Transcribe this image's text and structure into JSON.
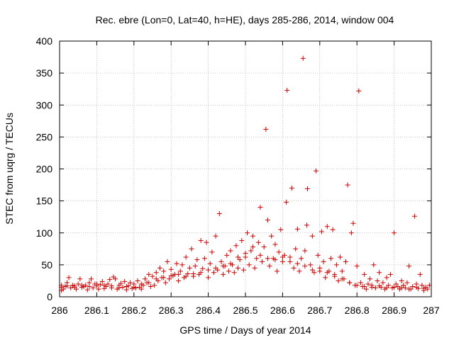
{
  "chart_data": {
    "type": "scatter",
    "title": "Rec. ebre (Lon=0, Lat=40, h=HE), days 285-286, 2014, window 004",
    "xlabel": "GPS time / Days of year 2014",
    "ylabel": "STEC from uqrg / TECUs",
    "xlim": [
      286,
      287
    ],
    "ylim": [
      0,
      400
    ],
    "xticks": [
      286,
      286.1,
      286.2,
      286.3,
      286.4,
      286.5,
      286.6,
      286.7,
      286.8,
      286.9,
      287
    ],
    "xtick_labels": [
      "286",
      "286.1",
      "286.2",
      "286.3",
      "286.4",
      "286.5",
      "286.6",
      "286.7",
      "286.8",
      "286.9",
      "287"
    ],
    "yticks": [
      0,
      50,
      100,
      150,
      200,
      250,
      300,
      350,
      400
    ],
    "ytick_labels": [
      "0",
      "50",
      "100",
      "150",
      "200",
      "250",
      "300",
      "350",
      "400"
    ],
    "grid": true,
    "marker": "+",
    "color": "#cc0000",
    "series": [
      {
        "name": "STEC",
        "points": [
          [
            286.005,
            10
          ],
          [
            286.005,
            15
          ],
          [
            286.005,
            18
          ],
          [
            286.01,
            12
          ],
          [
            286.015,
            16
          ],
          [
            286.02,
            22
          ],
          [
            286.025,
            30
          ],
          [
            286.03,
            14
          ],
          [
            286.035,
            18
          ],
          [
            286.04,
            17
          ],
          [
            286.045,
            12
          ],
          [
            286.05,
            20
          ],
          [
            286.055,
            28
          ],
          [
            286.06,
            15
          ],
          [
            286.065,
            16
          ],
          [
            286.07,
            18
          ],
          [
            286.075,
            11
          ],
          [
            286.08,
            22
          ],
          [
            286.085,
            28
          ],
          [
            286.09,
            14
          ],
          [
            286.095,
            20
          ],
          [
            286.1,
            17
          ],
          [
            286.105,
            12
          ],
          [
            286.11,
            19
          ],
          [
            286.115,
            24
          ],
          [
            286.12,
            13
          ],
          [
            286.125,
            16
          ],
          [
            286.13,
            20
          ],
          [
            286.135,
            27
          ],
          [
            286.14,
            14
          ],
          [
            286.145,
            31
          ],
          [
            286.15,
            28
          ],
          [
            286.155,
            12
          ],
          [
            286.16,
            18
          ],
          [
            286.165,
            21
          ],
          [
            286.17,
            15
          ],
          [
            286.175,
            24
          ],
          [
            286.18,
            11
          ],
          [
            286.185,
            17
          ],
          [
            286.19,
            22
          ],
          [
            286.195,
            13
          ],
          [
            286.2,
            20
          ],
          [
            286.205,
            14
          ],
          [
            286.21,
            25
          ],
          [
            286.215,
            15
          ],
          [
            286.22,
            12
          ],
          [
            286.225,
            18
          ],
          [
            286.23,
            28
          ],
          [
            286.235,
            22
          ],
          [
            286.24,
            35
          ],
          [
            286.245,
            16
          ],
          [
            286.25,
            32
          ],
          [
            286.255,
            18
          ],
          [
            286.26,
            38
          ],
          [
            286.265,
            25
          ],
          [
            286.27,
            45
          ],
          [
            286.275,
            30
          ],
          [
            286.28,
            40
          ],
          [
            286.285,
            22
          ],
          [
            286.29,
            55
          ],
          [
            286.295,
            28
          ],
          [
            286.3,
            43
          ],
          [
            286.305,
            33
          ],
          [
            286.31,
            35
          ],
          [
            286.315,
            52
          ],
          [
            286.32,
            25
          ],
          [
            286.325,
            40
          ],
          [
            286.33,
            50
          ],
          [
            286.335,
            30
          ],
          [
            286.34,
            62
          ],
          [
            286.345,
            36
          ],
          [
            286.35,
            45
          ],
          [
            286.355,
            75
          ],
          [
            286.36,
            32
          ],
          [
            286.365,
            48
          ],
          [
            286.37,
            58
          ],
          [
            286.375,
            35
          ],
          [
            286.38,
            88
          ],
          [
            286.385,
            44
          ],
          [
            286.39,
            60
          ],
          [
            286.395,
            85
          ],
          [
            286.4,
            30
          ],
          [
            286.405,
            52
          ],
          [
            286.41,
            70
          ],
          [
            286.415,
            38
          ],
          [
            286.42,
            95
          ],
          [
            286.425,
            42
          ],
          [
            286.43,
            130
          ],
          [
            286.435,
            55
          ],
          [
            286.44,
            35
          ],
          [
            286.445,
            48
          ],
          [
            286.45,
            65
          ],
          [
            286.455,
            40
          ],
          [
            286.46,
            72
          ],
          [
            286.465,
            50
          ],
          [
            286.47,
            38
          ],
          [
            286.475,
            80
          ],
          [
            286.48,
            45
          ],
          [
            286.485,
            58
          ],
          [
            286.49,
            88
          ],
          [
            286.495,
            42
          ],
          [
            286.5,
            62
          ],
          [
            286.505,
            100
          ],
          [
            286.51,
            50
          ],
          [
            286.515,
            72
          ],
          [
            286.52,
            95
          ],
          [
            286.525,
            45
          ],
          [
            286.53,
            60
          ],
          [
            286.535,
            85
          ],
          [
            286.54,
            140
          ],
          [
            286.545,
            55
          ],
          [
            286.55,
            78
          ],
          [
            286.555,
            262
          ],
          [
            286.56,
            120
          ],
          [
            286.565,
            48
          ],
          [
            286.57,
            95
          ],
          [
            286.575,
            60
          ],
          [
            286.58,
            82
          ],
          [
            286.585,
            40
          ],
          [
            286.59,
            70
          ],
          [
            286.595,
            105
          ],
          [
            286.6,
            55
          ],
          [
            286.605,
            65
          ],
          [
            286.61,
            148
          ],
          [
            286.612,
            323
          ],
          [
            286.62,
            62
          ],
          [
            286.625,
            170
          ],
          [
            286.63,
            45
          ],
          [
            286.635,
            75
          ],
          [
            286.64,
            106
          ],
          [
            286.645,
            40
          ],
          [
            286.65,
            60
          ],
          [
            286.655,
            373
          ],
          [
            286.66,
            72
          ],
          [
            286.665,
            112
          ],
          [
            286.667,
            169
          ],
          [
            286.675,
            50
          ],
          [
            286.68,
            95
          ],
          [
            286.685,
            38
          ],
          [
            286.69,
            197
          ],
          [
            286.695,
            65
          ],
          [
            286.7,
            45
          ],
          [
            286.705,
            102
          ],
          [
            286.71,
            55
          ],
          [
            286.715,
            30
          ],
          [
            286.72,
            110
          ],
          [
            286.725,
            40
          ],
          [
            286.73,
            60
          ],
          [
            286.735,
            105
          ],
          [
            286.74,
            35
          ],
          [
            286.745,
            50
          ],
          [
            286.75,
            25
          ],
          [
            286.755,
            62
          ],
          [
            286.76,
            40
          ],
          [
            286.765,
            28
          ],
          [
            286.77,
            55
          ],
          [
            286.775,
            175
          ],
          [
            286.78,
            22
          ],
          [
            286.785,
            100
          ],
          [
            286.79,
            115
          ],
          [
            286.795,
            18
          ],
          [
            286.8,
            48
          ],
          [
            286.805,
            322
          ],
          [
            286.81,
            22
          ],
          [
            286.815,
            16
          ],
          [
            286.82,
            35
          ],
          [
            286.825,
            12
          ],
          [
            286.83,
            20
          ],
          [
            286.835,
            28
          ],
          [
            286.84,
            18
          ],
          [
            286.845,
            50
          ],
          [
            286.85,
            14
          ],
          [
            286.855,
            25
          ],
          [
            286.86,
            38
          ],
          [
            286.865,
            15
          ],
          [
            286.87,
            22
          ],
          [
            286.875,
            12
          ],
          [
            286.88,
            30
          ],
          [
            286.885,
            18
          ],
          [
            286.89,
            35
          ],
          [
            286.895,
            14
          ],
          [
            286.9,
            100
          ],
          [
            286.905,
            20
          ],
          [
            286.91,
            16
          ],
          [
            286.915,
            12
          ],
          [
            286.92,
            25
          ],
          [
            286.925,
            18
          ],
          [
            286.93,
            14
          ],
          [
            286.935,
            22
          ],
          [
            286.94,
            48
          ],
          [
            286.945,
            12
          ],
          [
            286.95,
            16
          ],
          [
            286.955,
            126
          ],
          [
            286.96,
            20
          ],
          [
            286.965,
            13
          ],
          [
            286.97,
            35
          ],
          [
            286.975,
            18
          ],
          [
            286.98,
            10
          ],
          [
            286.985,
            15
          ],
          [
            286.99,
            12
          ],
          [
            286.995,
            18
          ],
          [
            286.02,
            17
          ],
          [
            286.04,
            15
          ],
          [
            286.06,
            18
          ],
          [
            286.08,
            16
          ],
          [
            286.1,
            20
          ],
          [
            286.12,
            18
          ],
          [
            286.14,
            17
          ],
          [
            286.16,
            14
          ],
          [
            286.18,
            16
          ],
          [
            286.2,
            15
          ],
          [
            286.22,
            20
          ],
          [
            286.24,
            22
          ],
          [
            286.26,
            28
          ],
          [
            286.28,
            30
          ],
          [
            286.3,
            33
          ],
          [
            286.32,
            35
          ],
          [
            286.34,
            32
          ],
          [
            286.36,
            36
          ],
          [
            286.38,
            38
          ],
          [
            286.4,
            42
          ],
          [
            286.42,
            45
          ],
          [
            286.44,
            48
          ],
          [
            286.46,
            52
          ],
          [
            286.48,
            62
          ],
          [
            286.5,
            68
          ],
          [
            286.52,
            78
          ],
          [
            286.54,
            65
          ],
          [
            286.56,
            60
          ],
          [
            286.58,
            58
          ],
          [
            286.6,
            62
          ],
          [
            286.62,
            55
          ],
          [
            286.64,
            52
          ],
          [
            286.66,
            48
          ],
          [
            286.68,
            42
          ],
          [
            286.7,
            40
          ],
          [
            286.72,
            38
          ],
          [
            286.74,
            32
          ],
          [
            286.76,
            28
          ],
          [
            286.78,
            22
          ],
          [
            286.8,
            18
          ],
          [
            286.82,
            16
          ],
          [
            286.84,
            15
          ],
          [
            286.86,
            17
          ],
          [
            286.88,
            14
          ],
          [
            286.9,
            15
          ],
          [
            286.92,
            14
          ],
          [
            286.94,
            12
          ],
          [
            286.96,
            15
          ],
          [
            286.98,
            13
          ]
        ]
      }
    ]
  }
}
